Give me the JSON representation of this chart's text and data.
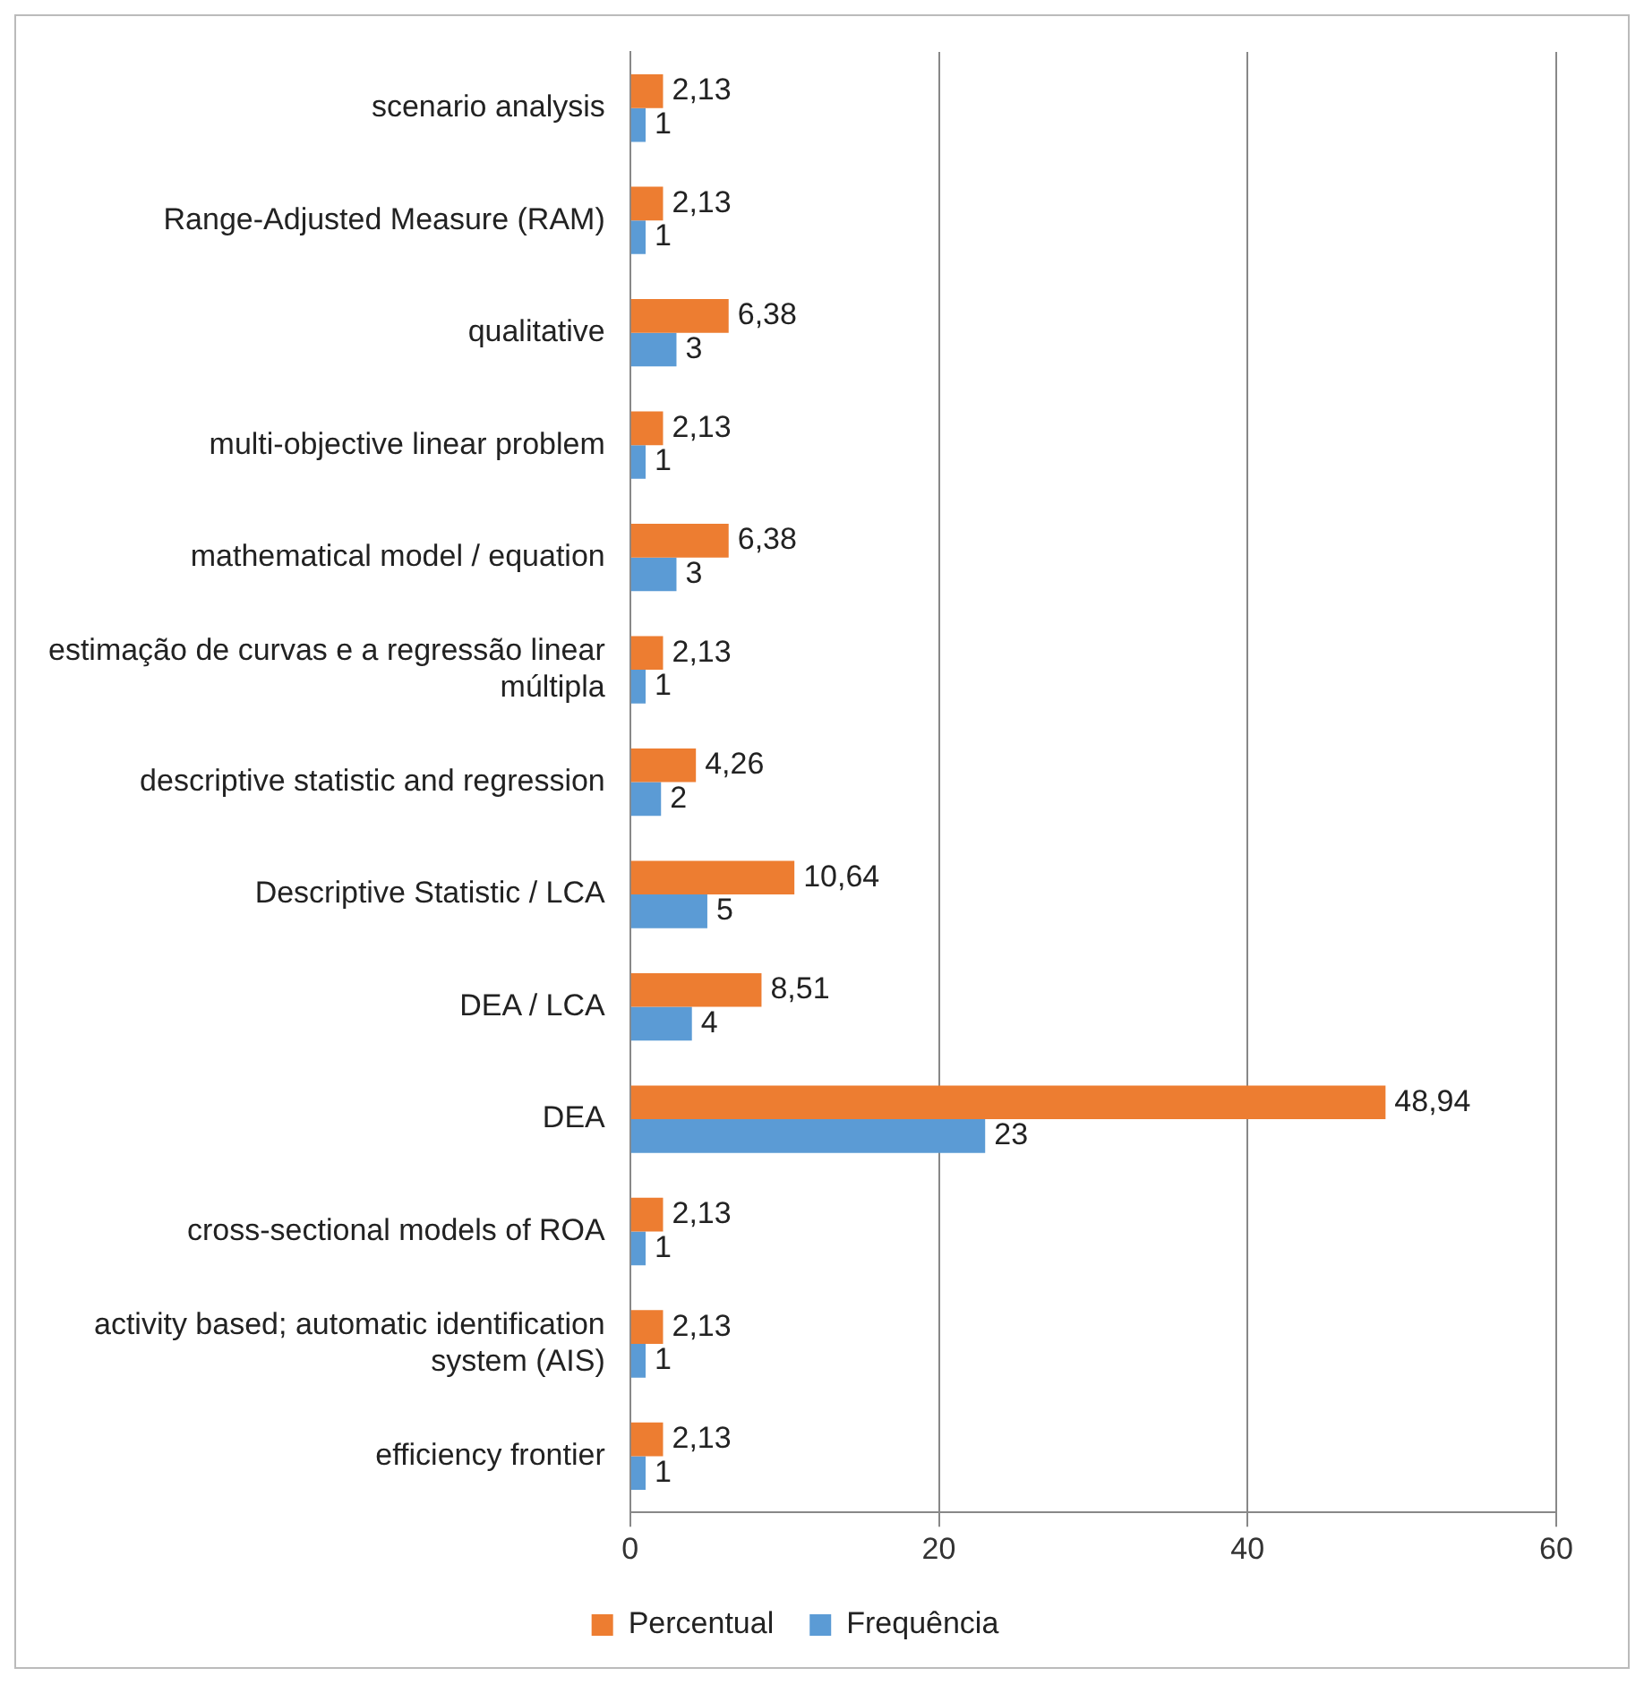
{
  "chart_data": {
    "type": "bar",
    "orientation": "horizontal",
    "categories": [
      "scenario analysis",
      "Range-Adjusted Measure (RAM)",
      "qualitative",
      "multi-objective linear problem",
      "mathematical model / equation",
      "estimação de curvas e a regressão linear múltipla",
      "descriptive statistic and regression",
      "Descriptive Statistic / LCA",
      "DEA / LCA",
      "DEA",
      "cross-sectional models of ROA",
      "activity based; automatic identification system (AIS)",
      "efficiency frontier"
    ],
    "series": [
      {
        "name": "Percentual",
        "color": "#ed7d31",
        "values": [
          2.13,
          2.13,
          6.38,
          2.13,
          6.38,
          2.13,
          4.26,
          10.64,
          8.51,
          48.94,
          2.13,
          2.13,
          2.13
        ],
        "value_labels": [
          "2,13",
          "2,13",
          "6,38",
          "2,13",
          "6,38",
          "2,13",
          "4,26",
          "10,64",
          "8,51",
          "48,94",
          "2,13",
          "2,13",
          "2,13"
        ]
      },
      {
        "name": "Frequência",
        "color": "#5b9bd5",
        "values": [
          1,
          1,
          3,
          1,
          3,
          1,
          2,
          5,
          4,
          23,
          1,
          1,
          1
        ],
        "value_labels": [
          "1",
          "1",
          "3",
          "1",
          "3",
          "1",
          "2",
          "5",
          "4",
          "23",
          "1",
          "1",
          "1"
        ]
      }
    ],
    "xlim": [
      0,
      60
    ],
    "xticks": [
      0,
      20,
      40,
      60
    ],
    "grid": "x",
    "legend": "bottom"
  }
}
